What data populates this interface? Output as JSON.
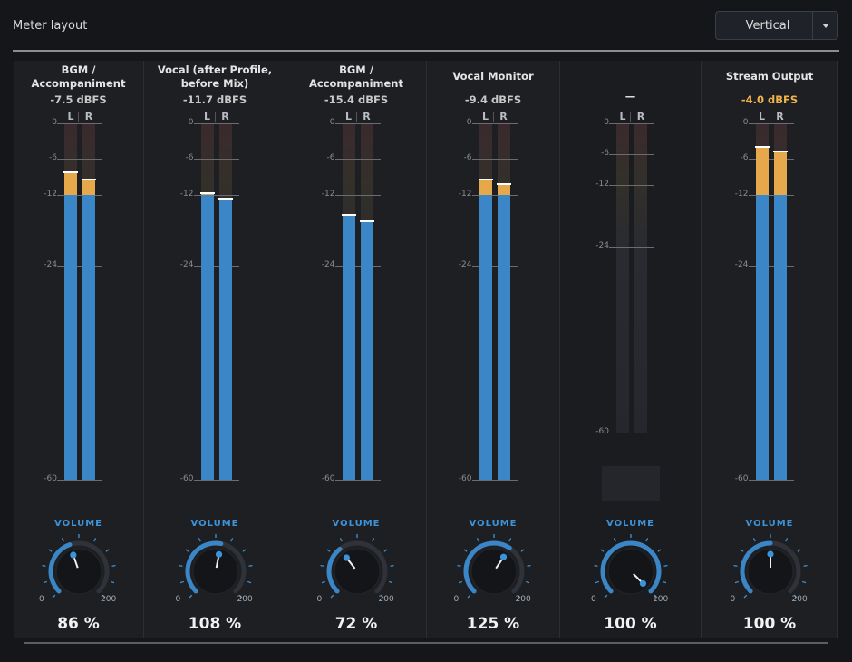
{
  "header": {
    "title": "Meter layout",
    "layout_select": {
      "value": "Vertical",
      "arrow_icon": "caret-down-icon"
    }
  },
  "scale_labels": [
    "0",
    "-6",
    "-12",
    "-24",
    "-60"
  ],
  "channel_labels": {
    "left": "L",
    "right": "R"
  },
  "volume_label": "VOLUME",
  "colors": {
    "meter_blue": "#3a86c6",
    "meter_amber": "#e6a84a",
    "peak_text": "#f2b34a",
    "accent": "#3d93d8"
  },
  "strips": [
    {
      "label_lines": [
        "BGM /",
        "Accompaniment"
      ],
      "dbfs": "-7.5 dBFS",
      "peak_highlight": false,
      "level_left_db": -8.2,
      "level_right_db": -9.5,
      "blue_cap_db": -12,
      "knob": {
        "min": "0",
        "max": "200",
        "value_percent": "86 %",
        "fraction": 0.43
      }
    },
    {
      "label_lines": [
        "Vocal (after Profile,",
        "before Mix)"
      ],
      "dbfs": "-11.7 dBFS",
      "peak_highlight": false,
      "level_left_db": -11.8,
      "level_right_db": -12.6,
      "blue_cap_db": -12,
      "knob": {
        "min": "0",
        "max": "200",
        "value_percent": "108 %",
        "fraction": 0.54
      }
    },
    {
      "label_lines": [
        "BGM /",
        "Accompaniment"
      ],
      "dbfs": "-15.4 dBFS",
      "peak_highlight": false,
      "level_left_db": -15.4,
      "level_right_db": -16.5,
      "blue_cap_db": -12,
      "knob": {
        "min": "0",
        "max": "200",
        "value_percent": "72 %",
        "fraction": 0.36
      }
    },
    {
      "label_lines": [
        "Vocal Monitor"
      ],
      "dbfs": "-9.4 dBFS",
      "peak_highlight": false,
      "level_left_db": -9.4,
      "level_right_db": -10.2,
      "blue_cap_db": -12,
      "knob": {
        "min": "0",
        "max": "200",
        "value_percent": "125 %",
        "fraction": 0.625
      }
    },
    {
      "label_lines": [
        "—"
      ],
      "dbfs": "",
      "peak_highlight": false,
      "level_left_db": null,
      "level_right_db": null,
      "blue_cap_db": -12,
      "knob": {
        "min": "0",
        "max": "100",
        "value_percent": "100 %",
        "fraction": 1.0
      }
    },
    {
      "label_lines": [
        "Stream Output"
      ],
      "dbfs": "-4.0 dBFS",
      "peak_highlight": true,
      "level_left_db": -4.0,
      "level_right_db": -4.8,
      "blue_cap_db": -12,
      "knob": {
        "min": "0",
        "max": "200",
        "value_percent": "100 %",
        "fraction": 0.5
      }
    }
  ]
}
